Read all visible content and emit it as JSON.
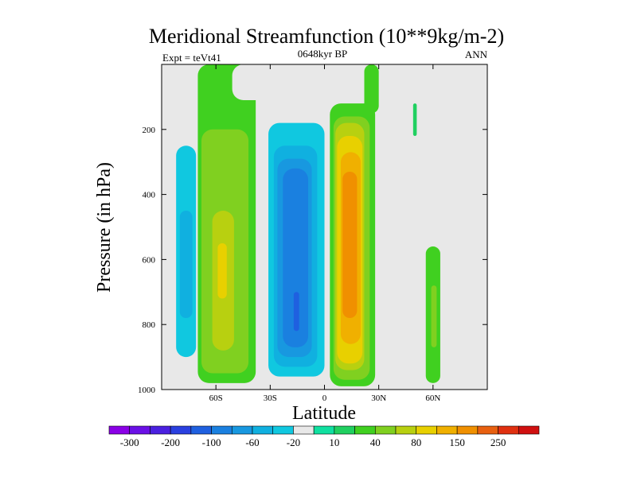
{
  "chart_data": {
    "type": "contour",
    "title": "Meridional Streamfunction (10**9kg/m-2)",
    "subtitle": "0648kyr BP",
    "left_label": "Expt = teVt41",
    "right_label": "ANN",
    "xlabel": "Latitude",
    "ylabel": "Pressure (in hPa)",
    "xlim": [
      -90,
      90
    ],
    "ylim": [
      1000,
      0
    ],
    "x_ticks": [
      {
        "value": -60,
        "label": "60S"
      },
      {
        "value": -30,
        "label": "30S"
      },
      {
        "value": 0,
        "label": "0"
      },
      {
        "value": 30,
        "label": "30N"
      },
      {
        "value": 60,
        "label": "60N"
      }
    ],
    "y_ticks": [
      {
        "value": 200,
        "label": "200"
      },
      {
        "value": 400,
        "label": "400"
      },
      {
        "value": 600,
        "label": "600"
      },
      {
        "value": 800,
        "label": "800"
      },
      {
        "value": 1000,
        "label": "1000"
      }
    ],
    "levels": [
      -300,
      -250,
      -200,
      -150,
      -100,
      -80,
      -60,
      -40,
      -20,
      -10,
      10,
      20,
      40,
      60,
      80,
      100,
      150,
      200,
      250,
      300
    ],
    "colorbar_labels": [
      "-300",
      "-200",
      "-100",
      "-60",
      "-20",
      "10",
      "40",
      "80",
      "150",
      "250"
    ],
    "colorbar_colors": [
      "#8a00e6",
      "#6a10e6",
      "#4a20e0",
      "#2a40e0",
      "#1f60e0",
      "#1a80e0",
      "#1898e0",
      "#10b0e0",
      "#10c8e0",
      "#e8e8e8",
      "#10e0a0",
      "#20d060",
      "#40d020",
      "#80d020",
      "#b8d010",
      "#e8d000",
      "#f0b000",
      "#f09000",
      "#e86010",
      "#e03010",
      "#d01010"
    ],
    "background_color": "#e8e8e8",
    "cells": [
      {
        "lat": [
          -83,
          -70
        ],
        "p": [
          0,
          960
        ],
        "level": -20
      },
      {
        "lat": [
          -82,
          -71
        ],
        "p": [
          250,
          900
        ],
        "level": -40
      },
      {
        "lat": [
          -80,
          -73
        ],
        "p": [
          450,
          780
        ],
        "level": -60
      },
      {
        "lat": [
          -70,
          -38
        ],
        "p": [
          0,
          980
        ],
        "level": 20
      },
      {
        "lat": [
          -68,
          -42
        ],
        "p": [
          200,
          950
        ],
        "level": 40
      },
      {
        "lat": [
          -62,
          -50
        ],
        "p": [
          450,
          880
        ],
        "level": 60
      },
      {
        "lat": [
          -59,
          -54
        ],
        "p": [
          550,
          720
        ],
        "level": 80
      },
      {
        "lat": [
          -51,
          -32
        ],
        "p": [
          0,
          110
        ],
        "level": -20
      },
      {
        "lat": [
          -34,
          2
        ],
        "p": [
          80,
          990
        ],
        "level": -20
      },
      {
        "lat": [
          -31,
          0
        ],
        "p": [
          180,
          960
        ],
        "level": -40
      },
      {
        "lat": [
          -28,
          -4
        ],
        "p": [
          250,
          930
        ],
        "level": -60
      },
      {
        "lat": [
          -26,
          -7
        ],
        "p": [
          290,
          900
        ],
        "level": -80
      },
      {
        "lat": [
          -23,
          -9
        ],
        "p": [
          320,
          870
        ],
        "level": -100
      },
      {
        "lat": [
          -17,
          -14
        ],
        "p": [
          700,
          820
        ],
        "level": -150
      },
      {
        "lat": [
          -12,
          -2
        ],
        "p": [
          0,
          20
        ],
        "level": -20
      },
      {
        "lat": [
          3,
          28
        ],
        "p": [
          120,
          990
        ],
        "level": 20
      },
      {
        "lat": [
          5,
          25
        ],
        "p": [
          160,
          970
        ],
        "level": 40
      },
      {
        "lat": [
          6,
          22
        ],
        "p": [
          180,
          940
        ],
        "level": 60
      },
      {
        "lat": [
          7,
          21
        ],
        "p": [
          220,
          920
        ],
        "level": 80
      },
      {
        "lat": [
          9,
          20
        ],
        "p": [
          270,
          860
        ],
        "level": 100
      },
      {
        "lat": [
          10,
          18
        ],
        "p": [
          330,
          780
        ],
        "level": 150
      },
      {
        "lat": [
          22,
          30
        ],
        "p": [
          0,
          150
        ],
        "level": 20
      },
      {
        "lat": [
          31,
          39
        ],
        "p": [
          100,
          220
        ],
        "level": -20
      },
      {
        "lat": [
          32,
          45
        ],
        "p": [
          270,
          880
        ],
        "level": -20
      },
      {
        "lat": [
          49,
          51
        ],
        "p": [
          120,
          220
        ],
        "level": 10
      },
      {
        "lat": [
          62,
          70
        ],
        "p": [
          0,
          210
        ],
        "level": -20
      },
      {
        "lat": [
          57,
          72
        ],
        "p": [
          180,
          370
        ],
        "level": -20
      },
      {
        "lat": [
          56,
          64
        ],
        "p": [
          560,
          980
        ],
        "level": 20
      },
      {
        "lat": [
          59,
          62
        ],
        "p": [
          680,
          870
        ],
        "level": 40
      }
    ]
  }
}
